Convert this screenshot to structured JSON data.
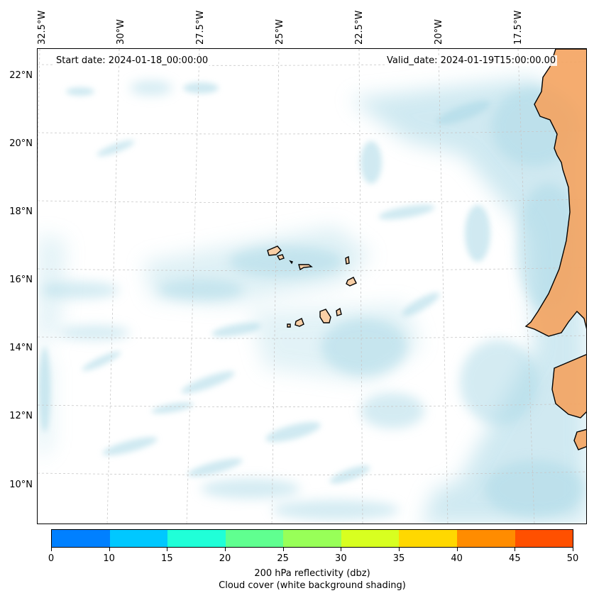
{
  "map": {
    "start_date": "Start date: 2024-01-18_00:00:00",
    "valid_date": "Valid_date: 2024-01-19T15:00:00.00",
    "longitude_labels": [
      "32.5°W",
      "30°W",
      "27.5°W",
      "25°W",
      "22.5°W",
      "20°W",
      "17.5°W"
    ],
    "latitude_labels": [
      "22°N",
      "20°N",
      "18°N",
      "16°N",
      "14°N",
      "12°N",
      "10°N"
    ],
    "land_color": "#f4a35f",
    "island_color": "#f9cfa6",
    "cloud_color": "#a9d8e6",
    "gridline_color": "#cccccc"
  },
  "colorbar": {
    "ticks": [
      "0",
      "10",
      "15",
      "20",
      "25",
      "30",
      "35",
      "40",
      "45",
      "50"
    ],
    "colors": [
      "#0080ff",
      "#00c8ff",
      "#20ffd8",
      "#60ff90",
      "#98ff58",
      "#d8ff20",
      "#ffd800",
      "#ff8c00",
      "#ff5000"
    ],
    "label_line1": "200 hPa reflectivity (dbz)",
    "label_line2": "Cloud cover (white background shading)"
  }
}
